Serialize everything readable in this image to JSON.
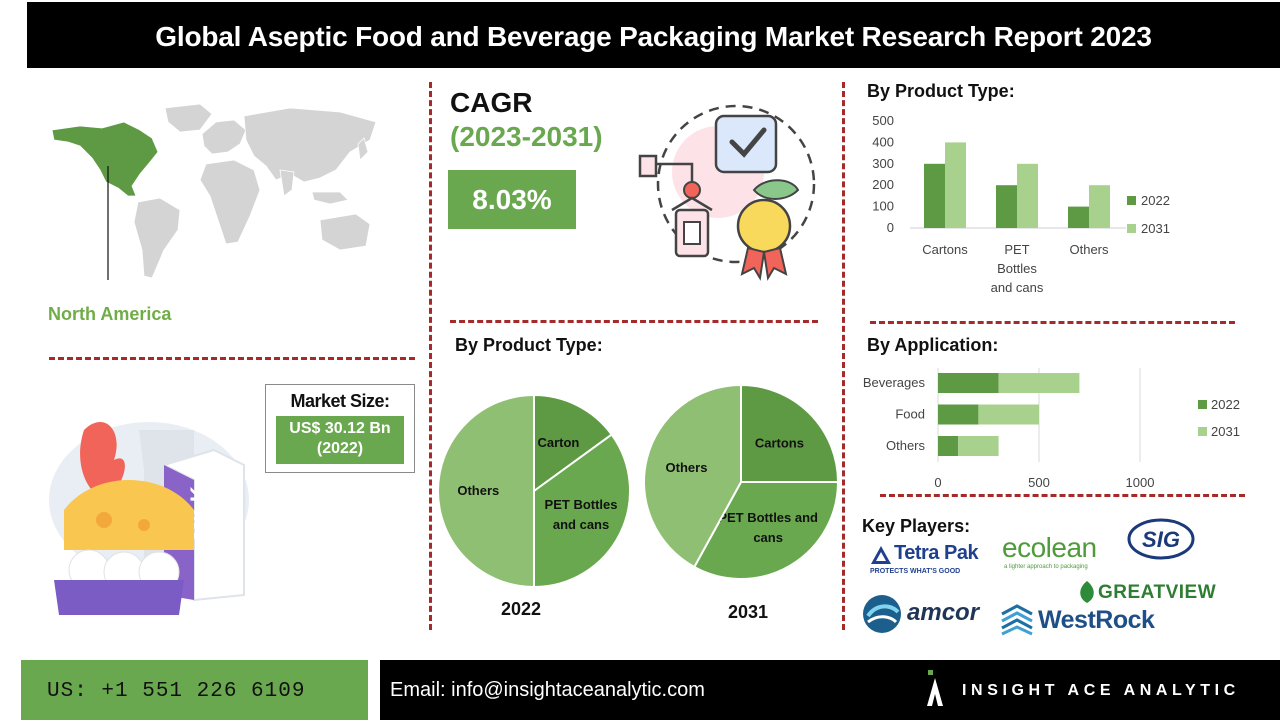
{
  "header": {
    "title": "Global Aseptic Food and Beverage Packaging Market Research Report 2023"
  },
  "region": {
    "label": "North America"
  },
  "market_size": {
    "label": "Market Size:",
    "value": "US$ 30.12 Bn",
    "year": "(2022)"
  },
  "cagr": {
    "title": "CAGR",
    "period": "(2023-2031)",
    "value": "8.03%"
  },
  "sections": {
    "product_type_bar": "By Product Type:",
    "product_type_pie": "By Product Type:",
    "application": "By Application:",
    "key_players": "Key Players:"
  },
  "key_players": [
    {
      "name": "Tetra Pak",
      "tagline": "PROTECTS WHAT'S GOOD"
    },
    {
      "name": "ecolean",
      "tagline": "a lighter approach to packaging"
    },
    {
      "name": "SIG"
    },
    {
      "name": "GREATVIEW"
    },
    {
      "name": "amcor"
    },
    {
      "name": "WestRock"
    }
  ],
  "footer": {
    "phone": "US: +1 551 226 6109",
    "email": "Email: info@insightaceanalytic.com",
    "brand": "INSIGHT ACE ANALYTIC"
  },
  "colors": {
    "dark_green": "#5e9a44",
    "mid_green": "#70ad47",
    "light_green": "#a9d18e",
    "pie_light": "#8fbf72",
    "accent_red": "#a52a2a"
  },
  "chart_data": [
    {
      "id": "product_type_bar",
      "type": "bar",
      "categories": [
        [
          "Cartons"
        ],
        [
          "PET",
          "Bottles",
          "and cans"
        ],
        [
          "Others"
        ]
      ],
      "series": [
        {
          "name": "2022",
          "values": [
            300,
            200,
            100
          ]
        },
        {
          "name": "2031",
          "values": [
            400,
            300,
            200
          ]
        }
      ],
      "ylim": [
        0,
        500
      ],
      "yticks": [
        0,
        100,
        200,
        300,
        400,
        500
      ],
      "legend": "right"
    },
    {
      "id": "application_bar",
      "type": "bar",
      "orientation": "horizontal",
      "stacked": true,
      "categories": [
        "Beverages",
        "Food",
        "Others"
      ],
      "series": [
        {
          "name": "2022",
          "values": [
            300,
            200,
            100
          ]
        },
        {
          "name": "2031",
          "values": [
            400,
            300,
            200
          ]
        }
      ],
      "xlim": [
        0,
        1000
      ],
      "xticks": [
        0,
        500,
        1000
      ],
      "legend": "right"
    },
    {
      "id": "pie_2022",
      "type": "pie",
      "label": "2022",
      "slices": [
        {
          "name": [
            "Carton"
          ],
          "value": 15
        },
        {
          "name": [
            "PET Bottles",
            "and cans"
          ],
          "value": 35
        },
        {
          "name": [
            "Others"
          ],
          "value": 50
        }
      ]
    },
    {
      "id": "pie_2031",
      "type": "pie",
      "label": "2031",
      "slices": [
        {
          "name": [
            "Cartons"
          ],
          "value": 25
        },
        {
          "name": [
            "PET Bottles and",
            "cans"
          ],
          "value": 33
        },
        {
          "name": [
            "Others"
          ],
          "value": 42
        }
      ]
    }
  ]
}
